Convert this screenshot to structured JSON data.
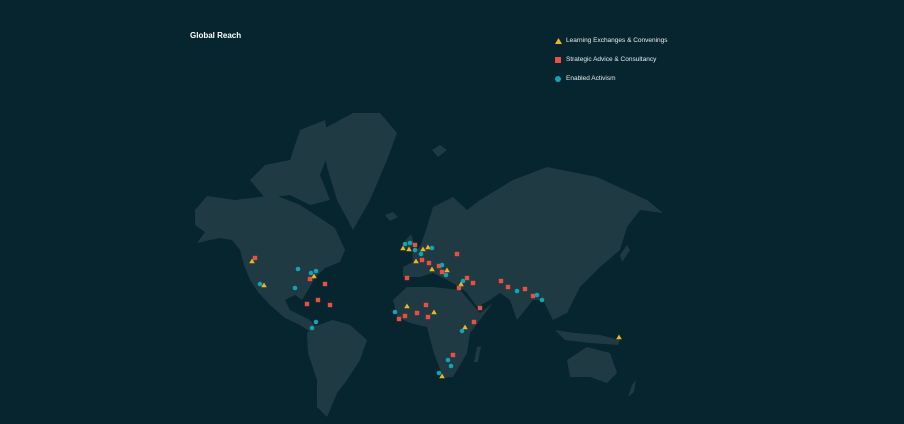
{
  "title": "Global Reach",
  "legend": [
    {
      "label": "Learning Exchanges & Convenings",
      "shape": "triangle",
      "color": "#f0b323"
    },
    {
      "label": "Strategic Advice & Consultancy",
      "shape": "square",
      "color": "#e8503f"
    },
    {
      "label": "Enabled Activism",
      "shape": "circle",
      "color": "#12a4b4"
    }
  ],
  "colors": {
    "background": "#06252e",
    "land": "#1f3a42"
  }
}
